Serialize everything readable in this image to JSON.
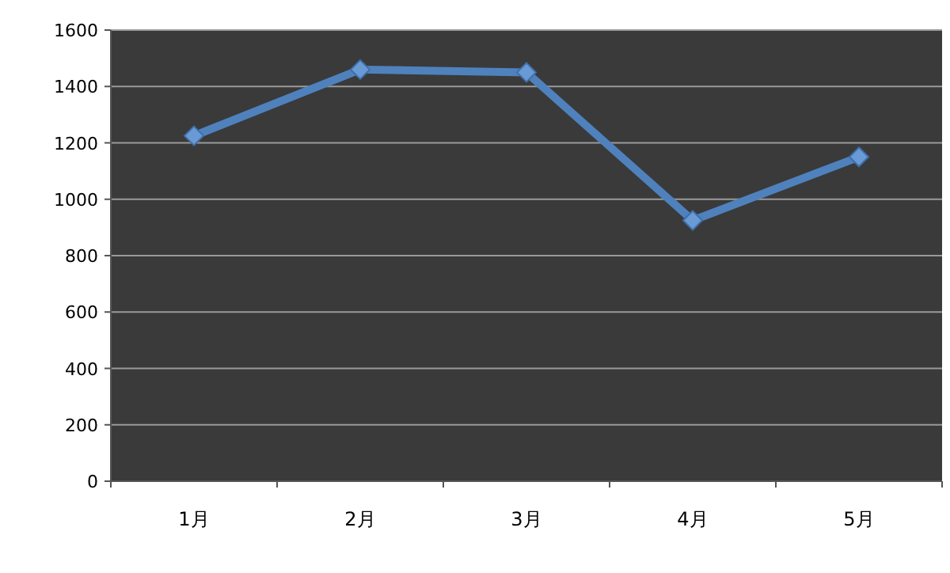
{
  "chart_data": {
    "type": "line",
    "categories": [
      "1月",
      "2月",
      "3月",
      "4月",
      "5月"
    ],
    "series": [
      {
        "color": "#4f81bd",
        "values": [
          1225,
          1460,
          1450,
          925,
          1150
        ]
      }
    ],
    "ylim": [
      0,
      1600
    ],
    "yticks": [
      0,
      200,
      400,
      600,
      800,
      1000,
      1200,
      1400,
      1600
    ],
    "grid": "y",
    "marker": "diamond",
    "line_style": "solid"
  }
}
